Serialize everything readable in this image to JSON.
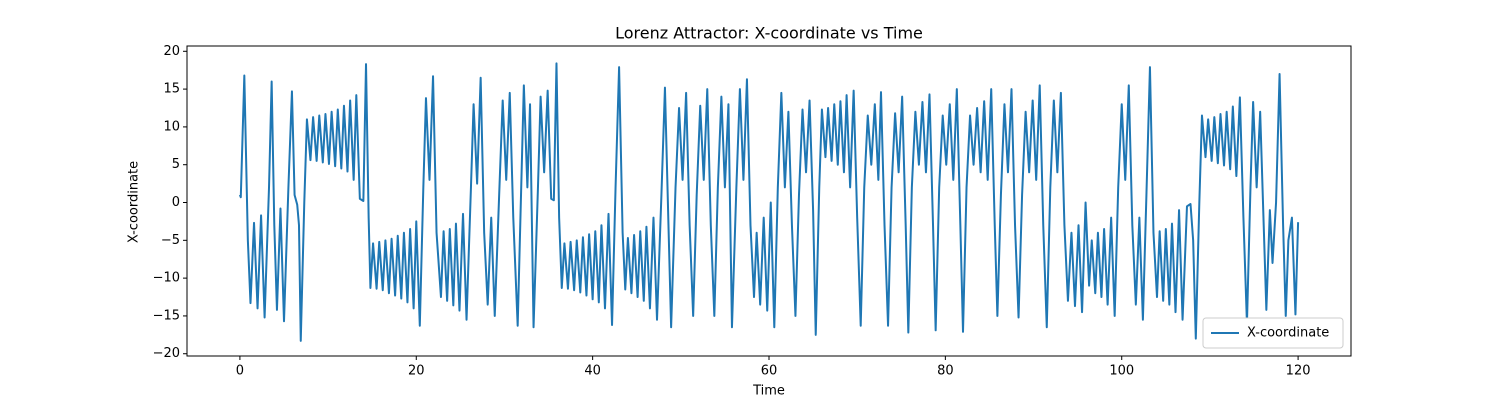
{
  "chart_data": {
    "type": "line",
    "title": "Lorenz Attractor: X-coordinate vs Time",
    "xlabel": "Time",
    "ylabel": "X-coordinate",
    "x": [
      0,
      0.1,
      0.5,
      0.9,
      1.2,
      1.6,
      2.0,
      2.4,
      2.8,
      3.3,
      3.6,
      3.9,
      4.2,
      4.6,
      5.0,
      5.5,
      5.9,
      6.2,
      6.5,
      6.7,
      6.9,
      7.3,
      7.6,
      8.0,
      8.3,
      8.7,
      9.0,
      9.4,
      9.7,
      10.1,
      10.4,
      10.8,
      11.1,
      11.5,
      11.8,
      12.2,
      12.5,
      12.9,
      13.2,
      13.6,
      14.0,
      14.3,
      14.6,
      14.8,
      15.1,
      15.5,
      15.8,
      16.2,
      16.5,
      16.9,
      17.2,
      17.6,
      17.9,
      18.3,
      18.6,
      19.0,
      19.3,
      19.7,
      20.0,
      20.4,
      20.8,
      21.1,
      21.5,
      21.9,
      22.3,
      22.8,
      23.1,
      23.5,
      23.8,
      24.2,
      24.5,
      24.9,
      25.3,
      25.7,
      26.2,
      26.5,
      26.9,
      27.3,
      27.7,
      28.1,
      28.5,
      28.9,
      29.4,
      29.8,
      30.2,
      30.6,
      31.0,
      31.5,
      31.9,
      32.2,
      32.6,
      32.9,
      33.3,
      33.8,
      34.1,
      34.5,
      34.9,
      35.3,
      35.6,
      35.9,
      36.2,
      36.5,
      36.8,
      37.2,
      37.5,
      37.9,
      38.2,
      38.6,
      38.9,
      39.3,
      39.6,
      40.0,
      40.3,
      40.7,
      41.0,
      41.4,
      41.8,
      42.2,
      42.6,
      43.0,
      43.4,
      43.7,
      44.0,
      44.4,
      44.7,
      45.1,
      45.4,
      45.8,
      46.1,
      46.5,
      46.9,
      47.3,
      47.8,
      48.2,
      48.6,
      48.9,
      49.4,
      49.8,
      50.2,
      50.6,
      51.0,
      51.4,
      51.8,
      52.2,
      52.6,
      53.0,
      53.4,
      53.8,
      54.2,
      54.6,
      55.0,
      55.4,
      55.8,
      56.3,
      56.7,
      57.1,
      57.5,
      57.9,
      58.3,
      58.6,
      59.0,
      59.4,
      59.8,
      60.2,
      60.6,
      61.0,
      61.4,
      61.8,
      62.2,
      62.6,
      63.0,
      63.4,
      63.8,
      64.2,
      64.6,
      65.0,
      65.3,
      65.7,
      66.0,
      66.4,
      66.7,
      67.1,
      67.4,
      67.8,
      68.1,
      68.5,
      68.8,
      69.2,
      69.6,
      70.0,
      70.4,
      70.8,
      71.2,
      71.6,
      72.0,
      72.4,
      72.7,
      73.1,
      73.5,
      73.9,
      74.3,
      74.7,
      75.1,
      75.5,
      75.8,
      76.2,
      76.6,
      77.0,
      77.4,
      77.8,
      78.2,
      78.6,
      78.9,
      79.3,
      79.7,
      80.1,
      80.5,
      80.9,
      81.3,
      81.7,
      82.0,
      82.4,
      82.8,
      83.2,
      83.6,
      84.0,
      84.4,
      84.8,
      85.2,
      85.6,
      85.9,
      86.3,
      86.7,
      87.1,
      87.5,
      87.9,
      88.3,
      88.7,
      89.1,
      89.5,
      89.9,
      90.3,
      90.7,
      91.1,
      91.5,
      91.9,
      92.3,
      92.7,
      93.1,
      93.5,
      93.9,
      94.3,
      94.7,
      95.1,
      95.5,
      95.9,
      96.3,
      96.6,
      97.0,
      97.3,
      97.7,
      98.0,
      98.4,
      98.8,
      99.2,
      99.6,
      100.0,
      100.4,
      100.8,
      101.2,
      101.6,
      102.0,
      102.4,
      102.8,
      103.2,
      103.6,
      104.0,
      104.3,
      104.7,
      105.0,
      105.4,
      105.7,
      106.1,
      106.5,
      106.9,
      107.4,
      107.8,
      108.1,
      108.4,
      108.8,
      109.1,
      109.5,
      109.8,
      110.2,
      110.5,
      110.9,
      111.2,
      111.6,
      111.9,
      112.3,
      112.6,
      113.0,
      113.4,
      113.8,
      114.2,
      114.6,
      114.9,
      115.3,
      115.7,
      116.1,
      116.4,
      116.8,
      117.1,
      117.5,
      117.9,
      118.3,
      118.6,
      118.9,
      119.3,
      119.7,
      120.0
    ],
    "series": [
      {
        "name": "X-coordinate",
        "color": "#1f77b4",
        "values": [
          1,
          0.7,
          16.8,
          -5,
          -13.3,
          -2.7,
          -14,
          -1.7,
          -15.2,
          2,
          16,
          -3,
          -14.2,
          -0.8,
          -15.7,
          2,
          14.7,
          1,
          -0.3,
          -3,
          -18.3,
          0,
          11,
          5.6,
          11.3,
          5.5,
          11.5,
          5.3,
          11.7,
          5.1,
          12,
          4.8,
          12.3,
          4.5,
          12.8,
          4.1,
          13.5,
          3.0,
          14.2,
          0.5,
          0.2,
          18.3,
          -2,
          -11.3,
          -5.4,
          -11.4,
          -5.2,
          -11.6,
          -5,
          -12,
          -4.8,
          -12.3,
          -4.4,
          -12.7,
          -4,
          -13.2,
          -3.5,
          -14,
          -2.5,
          -16.3,
          2,
          13.8,
          3,
          16.7,
          -4,
          -12.5,
          -3.8,
          -13,
          -3.5,
          -13.6,
          -2.8,
          -14.3,
          -1.5,
          -15.5,
          2,
          13,
          2.5,
          16.5,
          -4,
          -13.5,
          -2,
          -15,
          1,
          13.5,
          3,
          14.5,
          -2,
          -16.3,
          2,
          15.5,
          2,
          13,
          -16.5,
          2,
          14,
          4,
          14.8,
          0.5,
          0.3,
          18.4,
          -2,
          -11.3,
          -5.4,
          -11.4,
          -5.2,
          -11.6,
          -5,
          -11.9,
          -4.6,
          -12.3,
          -4.2,
          -12.8,
          -3.8,
          -13.2,
          -3,
          -14,
          -1.5,
          -16.2,
          2,
          17.9,
          -4,
          -11.5,
          -4.7,
          -12,
          -4.3,
          -12.5,
          -3.8,
          -13,
          -3.2,
          -14,
          -2,
          -15.5,
          1,
          15.2,
          -3,
          -16.5,
          2,
          12.5,
          3,
          14.5,
          -3,
          -15,
          1,
          12.8,
          3,
          15,
          -3,
          -15,
          2,
          14,
          2,
          13,
          -16.5,
          2,
          15,
          3,
          16.3,
          -3,
          -12.5,
          -4,
          -13.5,
          -2,
          -14.3,
          0,
          -16.5,
          2,
          14.5,
          2,
          12,
          -3,
          -15,
          1,
          12.3,
          4,
          13.5,
          -1,
          -17.5,
          2,
          12.3,
          6,
          12.5,
          5.5,
          13,
          5,
          13.4,
          4,
          14.2,
          2,
          14.8,
          -2,
          -16.3,
          2,
          11.5,
          5,
          13,
          3,
          14.6,
          -3,
          -16.3,
          2,
          11.8,
          4,
          14,
          -3,
          -17.2,
          2,
          12,
          5,
          13.3,
          4,
          14.3,
          -3,
          -16.9,
          2,
          11.5,
          5,
          13,
          3,
          15,
          -3,
          -17.1,
          2,
          11.5,
          5,
          12.5,
          4,
          13.4,
          3,
          15,
          -3,
          -15,
          1,
          13,
          4,
          15,
          -3,
          -15.2,
          1,
          12,
          4,
          13.5,
          3,
          15.5,
          -3,
          -16.5,
          2,
          13.5,
          4,
          14.5,
          -3,
          -13,
          -4,
          -13.7,
          -3,
          -14.5,
          0,
          -11,
          -5,
          -12,
          -4,
          -12.5,
          -3.5,
          -13.5,
          -2,
          -15,
          2,
          13,
          3,
          15.5,
          -3,
          -13.5,
          -2,
          -15.5,
          1,
          17.9,
          -4,
          -12.5,
          -3.8,
          -13,
          -3.5,
          -13.5,
          -2.8,
          -14.5,
          -1,
          -15.5,
          -0.5,
          -0.2,
          -5,
          -18,
          0,
          11.5,
          6,
          11,
          5.5,
          11.3,
          5.2,
          11.7,
          4.9,
          12,
          4.4,
          12.7,
          3.5,
          13.9,
          -2,
          -16,
          2,
          13.3,
          2,
          12,
          -3,
          -14.2,
          -1,
          -8,
          0,
          17,
          -3,
          -15,
          -5,
          -2,
          -14.8,
          -2.6
        ]
      }
    ],
    "xlim": [
      -6,
      126
    ],
    "ylim": [
      -20.3,
      20.7
    ],
    "xticks": [
      0,
      20,
      40,
      60,
      80,
      100,
      120
    ],
    "yticks": [
      {
        "value": -20,
        "label": "−20"
      },
      {
        "value": -15,
        "label": "−15"
      },
      {
        "value": -10,
        "label": "−10"
      },
      {
        "value": -5,
        "label": "−5"
      },
      0,
      5,
      10,
      15,
      20
    ],
    "grid": false,
    "legend": "lower right"
  }
}
